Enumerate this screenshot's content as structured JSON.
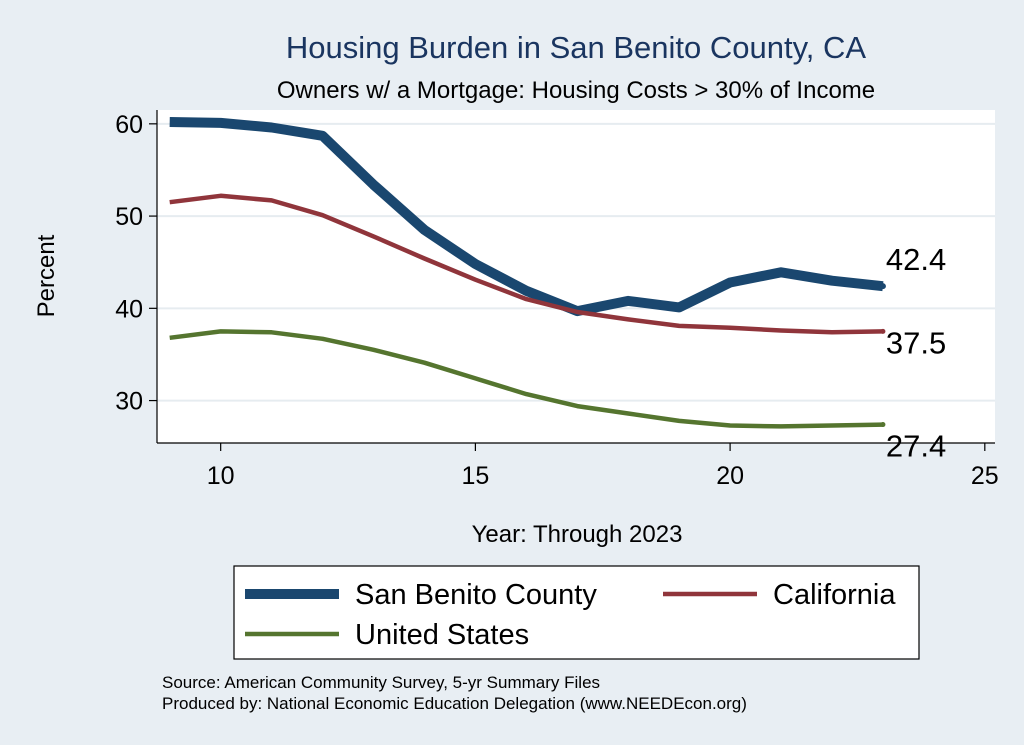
{
  "chart_data": {
    "type": "line",
    "title": "Housing Burden in San Benito County, CA",
    "subtitle": "Owners w/ a Mortgage: Housing Costs > 30% of Income",
    "xlabel": "Year: Through 2023",
    "ylabel": "Percent",
    "xlim": [
      8.75,
      25.2
    ],
    "ylim": [
      25.4,
      61.5
    ],
    "xticks": [
      10,
      15,
      20,
      25
    ],
    "yticks": [
      30,
      40,
      50,
      60
    ],
    "grid": "horizontal",
    "legend_position": "bottom",
    "series": [
      {
        "name": "San Benito County",
        "color": "#1a476f",
        "x": [
          9,
          10,
          11,
          12,
          13,
          14,
          15,
          16,
          17,
          18,
          19,
          20,
          21,
          22,
          23
        ],
        "values": [
          60.2,
          60.1,
          59.6,
          58.7,
          53.4,
          48.5,
          44.8,
          41.9,
          39.7,
          40.8,
          40.1,
          42.8,
          43.9,
          43.0,
          42.4
        ],
        "end_label": "42.4"
      },
      {
        "name": "California",
        "color": "#90353b",
        "x": [
          9,
          10,
          11,
          12,
          13,
          14,
          15,
          16,
          17,
          18,
          19,
          20,
          21,
          22,
          23
        ],
        "values": [
          51.5,
          52.2,
          51.7,
          50.1,
          47.8,
          45.4,
          43.1,
          41.0,
          39.6,
          38.8,
          38.1,
          37.9,
          37.6,
          37.4,
          37.5
        ],
        "end_label": "37.5"
      },
      {
        "name": "United States",
        "color": "#55752f",
        "x": [
          9,
          10,
          11,
          12,
          13,
          14,
          15,
          16,
          17,
          18,
          19,
          20,
          21,
          22,
          23
        ],
        "values": [
          36.8,
          37.5,
          37.4,
          36.7,
          35.5,
          34.1,
          32.4,
          30.7,
          29.4,
          28.6,
          27.8,
          27.3,
          27.2,
          27.3,
          27.4
        ],
        "end_label": "27.4"
      }
    ]
  },
  "notes": [
    "Source: American Community Survey, 5-yr Summary Files",
    "Produced by: National Economic Education Delegation (www.NEEDEcon.org)"
  ]
}
